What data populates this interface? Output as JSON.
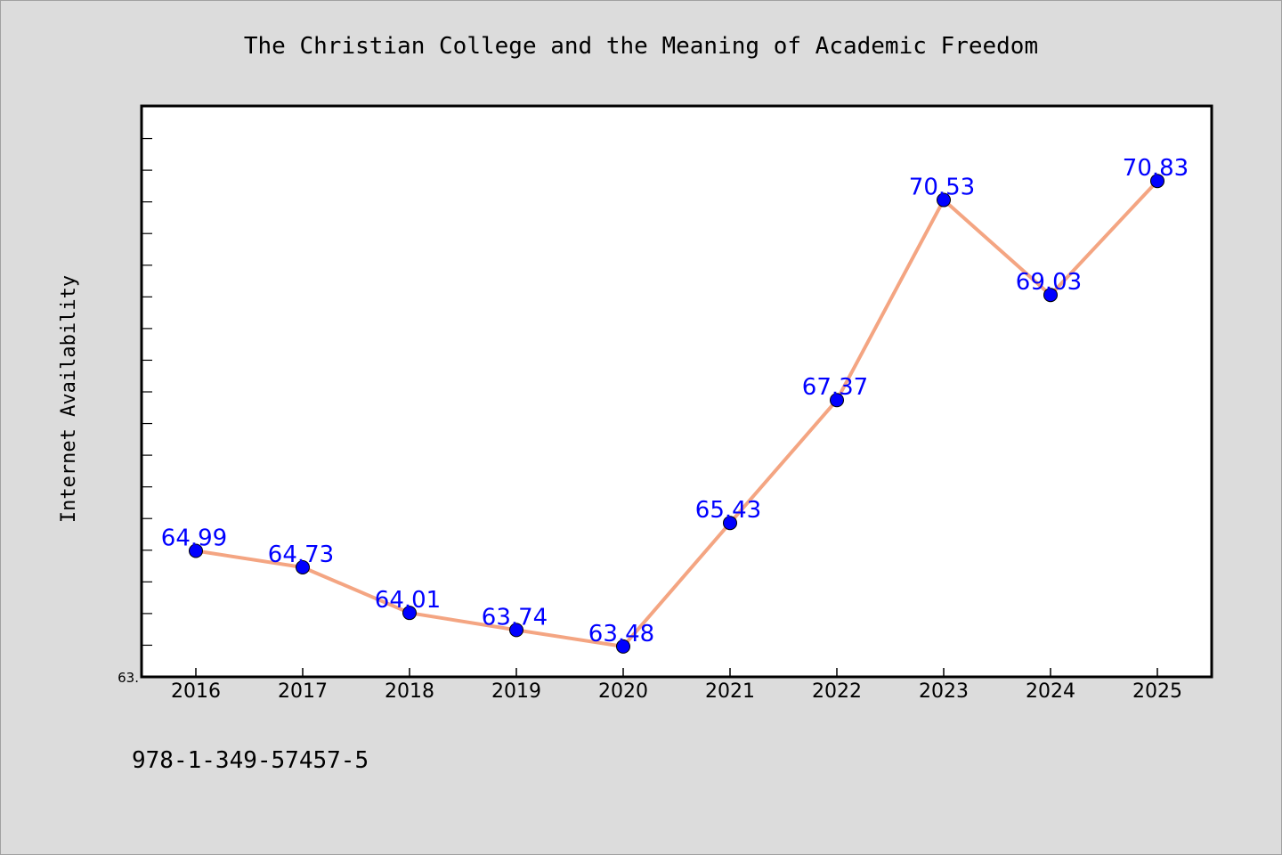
{
  "chart_data": {
    "type": "line",
    "title": "The Christian College and the Meaning of Academic Freedom",
    "xlabel": "",
    "ylabel": "Internet Availability",
    "categories": [
      "2016",
      "2017",
      "2018",
      "2019",
      "2020",
      "2021",
      "2022",
      "2023",
      "2024",
      "2025"
    ],
    "values": [
      64.99,
      64.73,
      64.01,
      63.74,
      63.48,
      65.43,
      67.37,
      70.53,
      69.03,
      70.83
    ],
    "data_labels": [
      "64.99",
      "64.73",
      "64.01",
      "63.74",
      "63.48",
      "65.43",
      "67.37",
      "70.53",
      "69.03",
      "70.83"
    ],
    "ylim": [
      63.0,
      72.0
    ],
    "y_tick_label": "63.",
    "grid": false,
    "line_color": "#f4a582",
    "marker_color": "#0000ff",
    "label_color": "#0000ff"
  },
  "footer": {
    "isbn": "978-1-349-57457-5"
  }
}
